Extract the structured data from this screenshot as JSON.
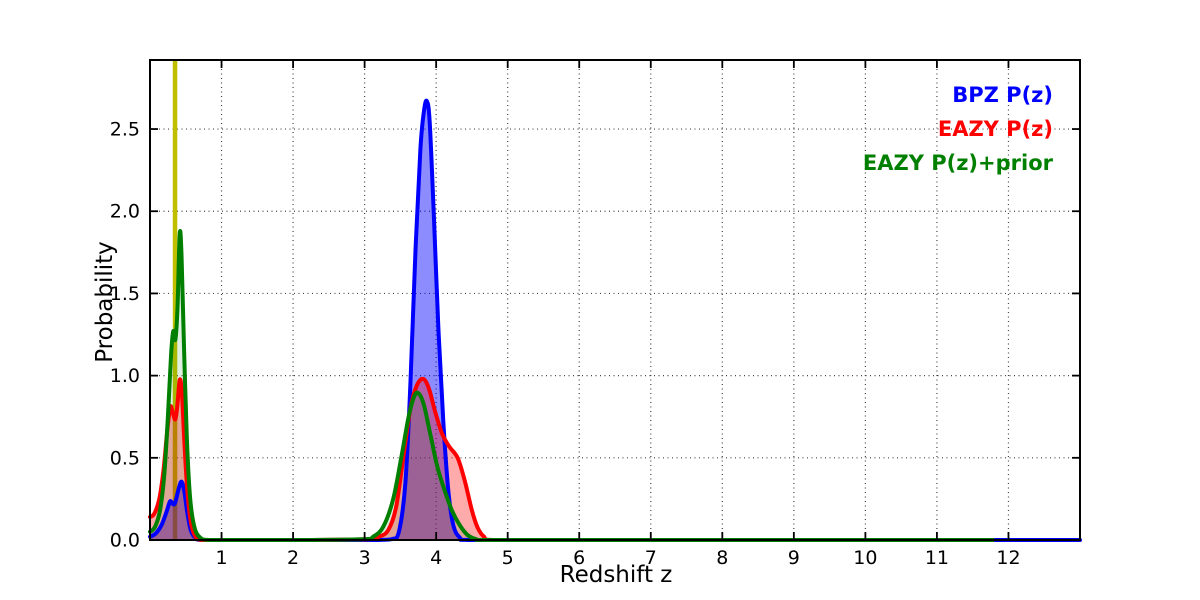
{
  "figure": {
    "xlabel": "Redshift z",
    "ylabel": "Probability",
    "background_color": "#ffffff",
    "spine_color": "#000000",
    "grid_color": "#222222"
  },
  "legend": {
    "position": "upper-right",
    "items": [
      {
        "label": "BPZ P(z)",
        "color": "#0000ff"
      },
      {
        "label": "EAZY P(z)",
        "color": "#ff0000"
      },
      {
        "label": "EAZY P(z)+prior",
        "color": "#007f00"
      }
    ]
  },
  "chart_data": {
    "type": "line",
    "title": "",
    "xlabel": "Redshift z",
    "ylabel": "Probability",
    "xlim": [
      0,
      13
    ],
    "ylim": [
      0,
      2.92
    ],
    "x_ticks": [
      1,
      2,
      3,
      4,
      5,
      6,
      7,
      8,
      9,
      10,
      11,
      12
    ],
    "x_tick_labels": [
      "1",
      "2",
      "3",
      "4",
      "5",
      "6",
      "7",
      "8",
      "9",
      "10",
      "11",
      "12"
    ],
    "y_ticks": [
      0.0,
      0.5,
      1.0,
      1.5,
      2.0,
      2.5
    ],
    "y_tick_labels": [
      "0.0",
      "0.5",
      "1.0",
      "1.5",
      "2.0",
      "2.5"
    ],
    "grid": "dotted",
    "legend_position": "upper right",
    "marker_line": {
      "x": 0.35,
      "color": "#bfbf00",
      "line_width": 4.5
    },
    "series": [
      {
        "name": "BPZ P(z)",
        "line_color": "#0000ff",
        "fill_color": "#0000ff",
        "fill_opacity": 0.45,
        "line_width": 4,
        "points": [
          [
            0,
            0.02
          ],
          [
            0.08,
            0.04
          ],
          [
            0.16,
            0.09
          ],
          [
            0.23,
            0.17
          ],
          [
            0.28,
            0.235
          ],
          [
            0.315,
            0.22
          ],
          [
            0.35,
            0.225
          ],
          [
            0.4,
            0.31
          ],
          [
            0.44,
            0.355
          ],
          [
            0.48,
            0.295
          ],
          [
            0.52,
            0.17
          ],
          [
            0.57,
            0.06
          ],
          [
            0.63,
            0.015
          ],
          [
            0.72,
            0
          ],
          [
            1.2,
            0
          ],
          [
            2.2,
            0
          ],
          [
            3.1,
            0
          ],
          [
            3.38,
            0.005
          ],
          [
            3.48,
            0.05
          ],
          [
            3.57,
            0.35
          ],
          [
            3.64,
            0.95
          ],
          [
            3.71,
            1.75
          ],
          [
            3.78,
            2.38
          ],
          [
            3.83,
            2.61
          ],
          [
            3.87,
            2.67
          ],
          [
            3.91,
            2.54
          ],
          [
            3.97,
            1.95
          ],
          [
            4.03,
            1.3
          ],
          [
            4.1,
            0.72
          ],
          [
            4.17,
            0.3
          ],
          [
            4.24,
            0.09
          ],
          [
            4.33,
            0.015
          ],
          [
            4.45,
            0
          ],
          [
            5.5,
            0
          ],
          [
            8,
            0
          ],
          [
            10.5,
            0
          ],
          [
            13,
            0
          ]
        ]
      },
      {
        "name": "EAZY P(z)",
        "line_color": "#ff0000",
        "fill_color": "#ff0000",
        "fill_opacity": 0.33,
        "line_width": 4,
        "points": [
          [
            0,
            0.14
          ],
          [
            0.06,
            0.16
          ],
          [
            0.13,
            0.25
          ],
          [
            0.19,
            0.43
          ],
          [
            0.24,
            0.66
          ],
          [
            0.285,
            0.81
          ],
          [
            0.32,
            0.77
          ],
          [
            0.355,
            0.735
          ],
          [
            0.385,
            0.83
          ],
          [
            0.415,
            0.975
          ],
          [
            0.445,
            0.9
          ],
          [
            0.48,
            0.6
          ],
          [
            0.52,
            0.31
          ],
          [
            0.57,
            0.11
          ],
          [
            0.63,
            0.025
          ],
          [
            0.73,
            0
          ],
          [
            1.2,
            0
          ],
          [
            2.2,
            0
          ],
          [
            3.05,
            0.005
          ],
          [
            3.2,
            0.02
          ],
          [
            3.33,
            0.06
          ],
          [
            3.44,
            0.2
          ],
          [
            3.54,
            0.5
          ],
          [
            3.64,
            0.8
          ],
          [
            3.73,
            0.94
          ],
          [
            3.82,
            0.98
          ],
          [
            3.9,
            0.92
          ],
          [
            3.98,
            0.79
          ],
          [
            4.08,
            0.65
          ],
          [
            4.18,
            0.57
          ],
          [
            4.3,
            0.5
          ],
          [
            4.4,
            0.36
          ],
          [
            4.5,
            0.18
          ],
          [
            4.58,
            0.075
          ],
          [
            4.67,
            0.02
          ],
          [
            4.8,
            0
          ],
          [
            6,
            0
          ],
          [
            8.5,
            0
          ],
          [
            11.78,
            0
          ]
        ]
      },
      {
        "name": "EAZY P(z)+prior",
        "line_color": "#007f00",
        "fill_color": "#008000",
        "fill_opacity": 0.12,
        "line_width": 4,
        "points": [
          [
            0,
            0.05
          ],
          [
            0.07,
            0.08
          ],
          [
            0.14,
            0.18
          ],
          [
            0.2,
            0.4
          ],
          [
            0.25,
            0.75
          ],
          [
            0.295,
            1.13
          ],
          [
            0.325,
            1.27
          ],
          [
            0.355,
            1.22
          ],
          [
            0.385,
            1.42
          ],
          [
            0.415,
            1.86
          ],
          [
            0.44,
            1.74
          ],
          [
            0.475,
            1.18
          ],
          [
            0.515,
            0.62
          ],
          [
            0.56,
            0.26
          ],
          [
            0.62,
            0.08
          ],
          [
            0.7,
            0.015
          ],
          [
            0.82,
            0
          ],
          [
            1.2,
            0
          ],
          [
            2.2,
            0
          ],
          [
            3.0,
            0.005
          ],
          [
            3.12,
            0.02
          ],
          [
            3.26,
            0.08
          ],
          [
            3.4,
            0.25
          ],
          [
            3.52,
            0.52
          ],
          [
            3.62,
            0.76
          ],
          [
            3.7,
            0.88
          ],
          [
            3.76,
            0.89
          ],
          [
            3.83,
            0.82
          ],
          [
            3.92,
            0.64
          ],
          [
            4.02,
            0.44
          ],
          [
            4.12,
            0.3
          ],
          [
            4.22,
            0.18
          ],
          [
            4.33,
            0.09
          ],
          [
            4.44,
            0.03
          ],
          [
            4.56,
            0.005
          ],
          [
            4.7,
            0
          ],
          [
            6,
            0
          ],
          [
            8.5,
            0
          ],
          [
            11.78,
            0
          ]
        ]
      }
    ]
  }
}
